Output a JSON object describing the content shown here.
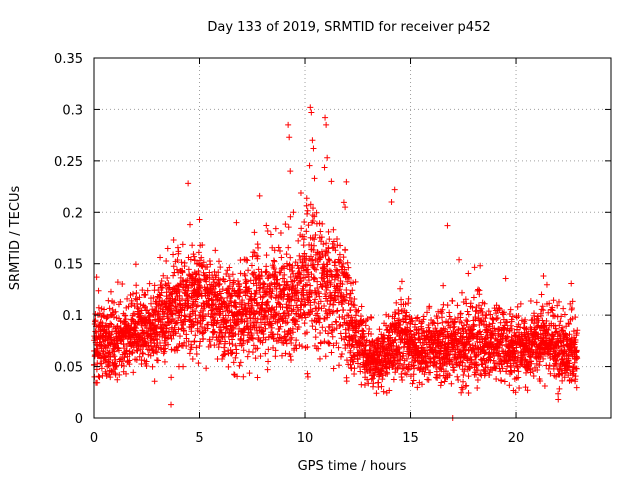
{
  "colors": {
    "series": "#ff0000",
    "grid": "#a0a0a0",
    "frame": "#000000",
    "background": "#ffffff"
  },
  "chart_data": {
    "type": "scatter",
    "title": "Day 133 of 2019, SRMTID for receiver p452",
    "xlabel": "GPS time / hours",
    "ylabel": "SRMTID / TECUs",
    "xlim": [
      0,
      24.5
    ],
    "ylim": [
      0,
      0.35
    ],
    "grid": true,
    "marker": "plus",
    "xticks": [
      0,
      5,
      10,
      15,
      20
    ],
    "xtick_labels": [
      "0",
      "5",
      "10",
      "15",
      "20"
    ],
    "yticks": [
      0,
      0.05,
      0.1,
      0.15,
      0.2,
      0.25,
      0.3,
      0.35
    ],
    "ytick_labels": [
      "0",
      "0.05",
      "0.1",
      "0.15",
      "0.2",
      "0.25",
      "0.3",
      "0.35"
    ],
    "sampling_interval_hours": 0.0083,
    "x_start": 0,
    "x_end": 22.9,
    "trend": [
      {
        "x": 0.0,
        "mean": 0.07,
        "spread": 0.035
      },
      {
        "x": 1.0,
        "mean": 0.075,
        "spread": 0.03
      },
      {
        "x": 2.0,
        "mean": 0.085,
        "spread": 0.03
      },
      {
        "x": 3.0,
        "mean": 0.09,
        "spread": 0.035
      },
      {
        "x": 4.0,
        "mean": 0.11,
        "spread": 0.045
      },
      {
        "x": 5.0,
        "mean": 0.12,
        "spread": 0.045
      },
      {
        "x": 6.0,
        "mean": 0.1,
        "spread": 0.04
      },
      {
        "x": 7.0,
        "mean": 0.1,
        "spread": 0.045
      },
      {
        "x": 8.0,
        "mean": 0.11,
        "spread": 0.045
      },
      {
        "x": 9.0,
        "mean": 0.11,
        "spread": 0.05
      },
      {
        "x": 10.0,
        "mean": 0.13,
        "spread": 0.065
      },
      {
        "x": 11.0,
        "mean": 0.13,
        "spread": 0.06
      },
      {
        "x": 12.0,
        "mean": 0.1,
        "spread": 0.05
      },
      {
        "x": 12.8,
        "mean": 0.065,
        "spread": 0.025
      },
      {
        "x": 13.5,
        "mean": 0.055,
        "spread": 0.022
      },
      {
        "x": 14.5,
        "mean": 0.075,
        "spread": 0.035
      },
      {
        "x": 15.5,
        "mean": 0.065,
        "spread": 0.025
      },
      {
        "x": 16.5,
        "mean": 0.07,
        "spread": 0.03
      },
      {
        "x": 17.5,
        "mean": 0.07,
        "spread": 0.035
      },
      {
        "x": 18.5,
        "mean": 0.075,
        "spread": 0.035
      },
      {
        "x": 19.5,
        "mean": 0.07,
        "spread": 0.03
      },
      {
        "x": 20.5,
        "mean": 0.07,
        "spread": 0.03
      },
      {
        "x": 21.5,
        "mean": 0.075,
        "spread": 0.03
      },
      {
        "x": 22.5,
        "mean": 0.06,
        "spread": 0.03
      },
      {
        "x": 22.9,
        "mean": 0.06,
        "spread": 0.03
      }
    ],
    "notable_points": [
      {
        "x": 3.65,
        "y": 0.013
      },
      {
        "x": 4.55,
        "y": 0.188
      },
      {
        "x": 5.0,
        "y": 0.193
      },
      {
        "x": 6.75,
        "y": 0.19
      },
      {
        "x": 7.85,
        "y": 0.216
      },
      {
        "x": 9.2,
        "y": 0.285
      },
      {
        "x": 9.25,
        "y": 0.273
      },
      {
        "x": 9.3,
        "y": 0.24
      },
      {
        "x": 9.45,
        "y": 0.2
      },
      {
        "x": 10.25,
        "y": 0.302
      },
      {
        "x": 10.3,
        "y": 0.297
      },
      {
        "x": 10.35,
        "y": 0.27
      },
      {
        "x": 10.4,
        "y": 0.262
      },
      {
        "x": 10.45,
        "y": 0.233
      },
      {
        "x": 10.95,
        "y": 0.292
      },
      {
        "x": 11.0,
        "y": 0.285
      },
      {
        "x": 11.05,
        "y": 0.253
      },
      {
        "x": 11.25,
        "y": 0.23
      },
      {
        "x": 11.9,
        "y": 0.205
      },
      {
        "x": 14.25,
        "y": 0.222
      },
      {
        "x": 14.1,
        "y": 0.21
      },
      {
        "x": 16.75,
        "y": 0.187
      },
      {
        "x": 17.0,
        "y": 0.0
      },
      {
        "x": 18.3,
        "y": 0.148
      },
      {
        "x": 21.3,
        "y": 0.138
      },
      {
        "x": 22.0,
        "y": 0.018
      }
    ]
  }
}
